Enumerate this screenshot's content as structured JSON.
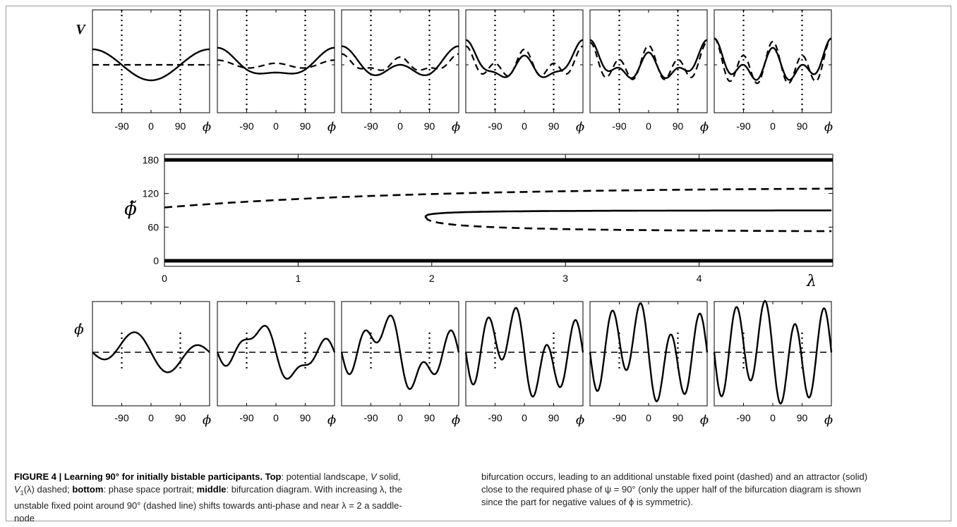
{
  "figure": {
    "top_row": {
      "y_label": "V",
      "x_label": "ϕ",
      "tick_labels": [
        "-90",
        "0",
        "90"
      ],
      "panels": 6
    },
    "middle": {
      "y_label": "ϕ̃",
      "x_label": "λ",
      "y_ticks": [
        "180",
        "120",
        "60",
        "0"
      ],
      "x_ticks": [
        "0",
        "1",
        "2",
        "3",
        "4"
      ]
    },
    "bottom_row": {
      "y_label": "ϕ̇",
      "x_label": "ϕ",
      "tick_labels": [
        "-90",
        "0",
        "90"
      ],
      "panels": 6
    }
  },
  "chart_data": [
    {
      "type": "line",
      "title": "",
      "xlabel": "ϕ",
      "ylabel": "V",
      "x_ticks": [
        -90,
        0,
        90
      ],
      "xlim": [
        -180,
        180
      ],
      "panels": 6,
      "series": [
        {
          "name": "V",
          "style": "solid"
        },
        {
          "name": "V1(λ)",
          "style": "dashed"
        }
      ]
    },
    {
      "type": "line",
      "title": "",
      "xlabel": "λ",
      "ylabel": "ϕ̃",
      "xlim": [
        0,
        5
      ],
      "ylim": [
        -10,
        190
      ],
      "x_ticks": [
        0,
        1,
        2,
        3,
        4
      ],
      "y_ticks": [
        0,
        60,
        120,
        180
      ],
      "series": [
        {
          "style": "solid",
          "x": [
            0,
            5
          ],
          "y": [
            180,
            180
          ]
        },
        {
          "style": "solid",
          "x": [
            0,
            5
          ],
          "y": [
            0,
            0
          ]
        },
        {
          "style": "dashed",
          "x": [
            0,
            1,
            2,
            3,
            4,
            5
          ],
          "y": [
            95,
            105,
            120,
            126,
            129,
            131
          ]
        },
        {
          "style": "solid",
          "x": [
            1.95,
            2.2,
            3,
            4,
            5
          ],
          "y": [
            79,
            85,
            88,
            89,
            90
          ]
        },
        {
          "style": "dashed",
          "x": [
            1.95,
            2.2,
            3,
            4,
            5
          ],
          "y": [
            79,
            66,
            57,
            53,
            51
          ]
        }
      ]
    },
    {
      "type": "line",
      "title": "",
      "xlabel": "ϕ",
      "ylabel": "ϕ̇",
      "x_ticks": [
        -90,
        0,
        90
      ],
      "xlim": [
        -180,
        180
      ],
      "panels": 6,
      "series": [
        {
          "style": "solid"
        },
        {
          "style": "dashed"
        }
      ]
    }
  ],
  "caption": {
    "figure_label": "FIGURE 4 | Learning 90° for initially bistable participants.",
    "top_label": "Top",
    "text1": ": potential landscape, ",
    "V": "V",
    "text2": " solid, ",
    "V1": "V",
    "V1_sub": "1",
    "V1_arg": "(λ) dashed; ",
    "bottom_label": "bottom",
    "text3": ": phase space portrait; ",
    "middle_label": "middle",
    "text4": ": bifurcation diagram. With increasing λ, the unstable fixed point around 90° (dashed line) shifts towards anti-phase and near λ = 2 a saddle-node",
    "right": "bifurcation occurs, leading to an additional unstable fixed point (dashed) and an attractor (solid) close to the required phase of ψ = 90° (only the upper half of the bifurcation diagram is shown since the part for negative values of ϕ is symmetric)."
  }
}
